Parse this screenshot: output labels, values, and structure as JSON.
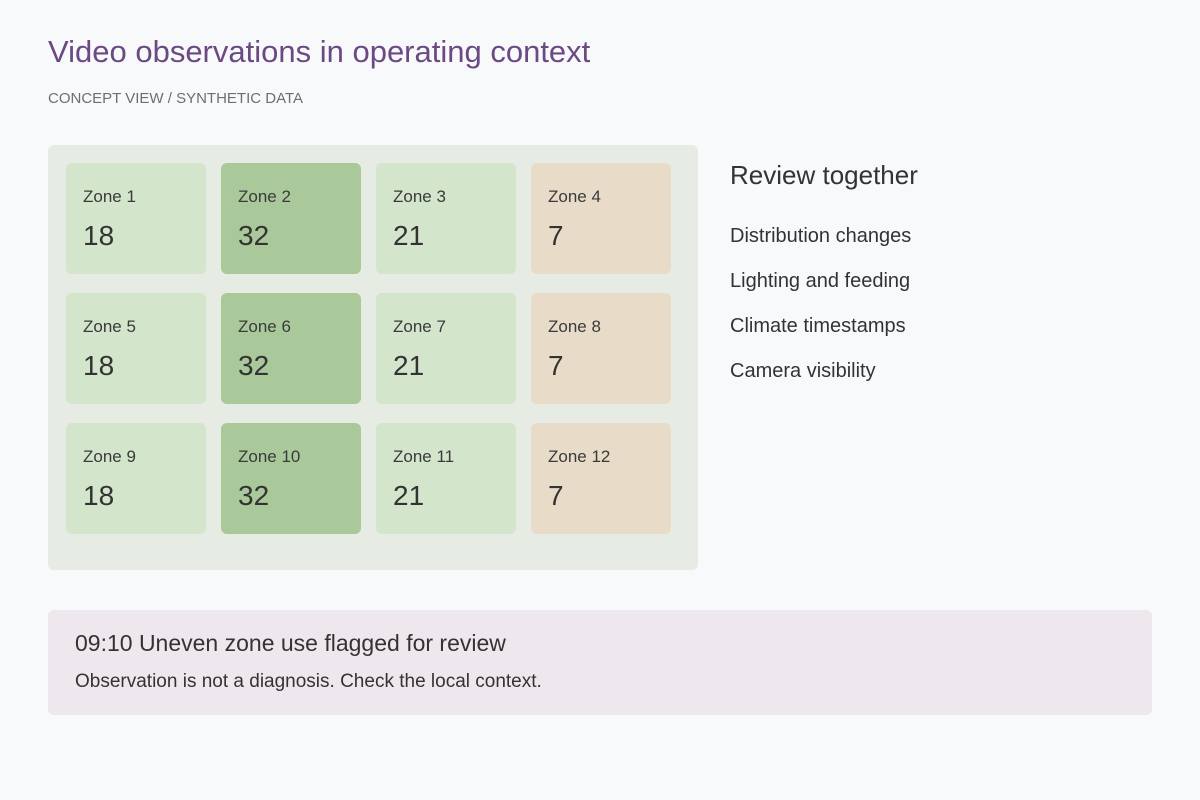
{
  "header": {
    "title": "Video observations in operating context",
    "subtitle": "CONCEPT VIEW / SYNTHETIC DATA"
  },
  "zones": [
    {
      "label": "Zone 1",
      "value": 18,
      "color": "#d3e5cb"
    },
    {
      "label": "Zone 2",
      "value": 32,
      "color": "#a9c99b"
    },
    {
      "label": "Zone 3",
      "value": 21,
      "color": "#d3e5cb"
    },
    {
      "label": "Zone 4",
      "value": 7,
      "color": "#e8dcc8"
    },
    {
      "label": "Zone 5",
      "value": 18,
      "color": "#d3e5cb"
    },
    {
      "label": "Zone 6",
      "value": 32,
      "color": "#a9c99b"
    },
    {
      "label": "Zone 7",
      "value": 21,
      "color": "#d3e5cb"
    },
    {
      "label": "Zone 8",
      "value": 7,
      "color": "#e8dcc8"
    },
    {
      "label": "Zone 9",
      "value": 18,
      "color": "#d3e5cb"
    },
    {
      "label": "Zone 10",
      "value": 32,
      "color": "#a9c99b"
    },
    {
      "label": "Zone 11",
      "value": 21,
      "color": "#d3e5cb"
    },
    {
      "label": "Zone 12",
      "value": 7,
      "color": "#e8dcc8"
    }
  ],
  "review": {
    "title": "Review together",
    "items": [
      "Distribution changes",
      "Lighting and feeding",
      "Climate timestamps",
      "Camera visibility"
    ]
  },
  "alert": {
    "title": "09:10 Uneven zone use flagged for review",
    "text": "Observation is not a diagnosis. Check the local context."
  }
}
